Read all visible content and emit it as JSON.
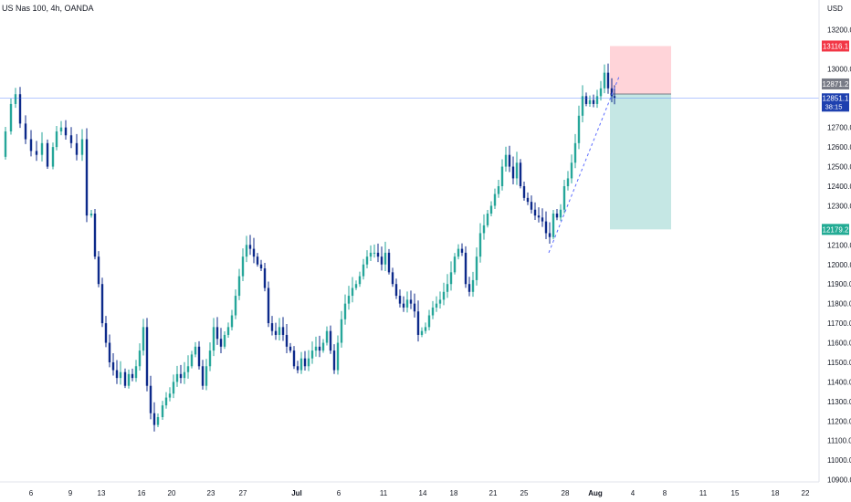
{
  "header": {
    "symbol": "US Nas 100, 4h, OANDA",
    "currency": "USD"
  },
  "colors": {
    "up": "#26a69a",
    "down": "#0d2a8a",
    "stop": "#ffcdd2",
    "target": "#b2dfdb",
    "stop_label": "#f23645",
    "target_label": "#22ab94",
    "last_label": "#1e40af",
    "mid_label": "#787b86"
  },
  "chart_data": {
    "type": "candlestick",
    "y_ticks": [
      "13200.0",
      "13000.0",
      "12700.0",
      "12600.0",
      "12500.0",
      "12400.0",
      "12300.0",
      "12100.0",
      "12000.0",
      "11900.0",
      "11800.0",
      "11700.0",
      "11600.0",
      "11500.0",
      "11400.0",
      "11300.0",
      "11200.0",
      "11100.0",
      "11000.0",
      "10900.0"
    ],
    "ylim": [
      10880,
      13300
    ],
    "x_ticks": [
      "6",
      "9",
      "13",
      "16",
      "20",
      "23",
      "27",
      "Jul",
      "6",
      "11",
      "14",
      "18",
      "21",
      "25",
      "28",
      "Aug",
      "4",
      "8",
      "11",
      "15",
      "18",
      "22"
    ],
    "series_path": [
      [
        0,
        12550
      ],
      [
        6,
        12680
      ],
      [
        12,
        12820
      ],
      [
        17,
        12870
      ],
      [
        22,
        12720
      ],
      [
        28,
        12640
      ],
      [
        34,
        12580
      ],
      [
        40,
        12560
      ],
      [
        46,
        12620
      ],
      [
        52,
        12500
      ],
      [
        58,
        12600
      ],
      [
        62,
        12680
      ],
      [
        67,
        12700
      ],
      [
        72,
        12660
      ],
      [
        78,
        12620
      ],
      [
        84,
        12560
      ],
      [
        90,
        12640
      ],
      [
        95,
        12250
      ],
      [
        100,
        12260
      ],
      [
        104,
        12040
      ],
      [
        108,
        11900
      ],
      [
        112,
        11700
      ],
      [
        116,
        11600
      ],
      [
        120,
        11500
      ],
      [
        124,
        11460
      ],
      [
        128,
        11420
      ],
      [
        132,
        11450
      ],
      [
        137,
        11380
      ],
      [
        141,
        11440
      ],
      [
        145,
        11420
      ],
      [
        149,
        11480
      ],
      [
        153,
        11560
      ],
      [
        157,
        11680
      ],
      [
        161,
        11380
      ],
      [
        165,
        11240
      ],
      [
        169,
        11180
      ],
      [
        173,
        11220
      ],
      [
        178,
        11280
      ],
      [
        182,
        11320
      ],
      [
        186,
        11340
      ],
      [
        190,
        11400
      ],
      [
        194,
        11440
      ],
      [
        198,
        11420
      ],
      [
        202,
        11450
      ],
      [
        206,
        11480
      ],
      [
        210,
        11540
      ],
      [
        214,
        11580
      ],
      [
        218,
        11480
      ],
      [
        222,
        11380
      ],
      [
        226,
        11480
      ],
      [
        230,
        11560
      ],
      [
        234,
        11680
      ],
      [
        238,
        11620
      ],
      [
        242,
        11580
      ],
      [
        246,
        11640
      ],
      [
        250,
        11680
      ],
      [
        254,
        11740
      ],
      [
        258,
        11840
      ],
      [
        262,
        11940
      ],
      [
        266,
        12040
      ],
      [
        270,
        12100
      ],
      [
        274,
        12080
      ],
      [
        278,
        12040
      ],
      [
        282,
        12000
      ],
      [
        286,
        11980
      ],
      [
        290,
        11880
      ],
      [
        294,
        11700
      ],
      [
        298,
        11660
      ],
      [
        302,
        11640
      ],
      [
        306,
        11680
      ],
      [
        310,
        11640
      ],
      [
        314,
        11580
      ],
      [
        318,
        11560
      ],
      [
        322,
        11480
      ],
      [
        326,
        11460
      ],
      [
        330,
        11520
      ],
      [
        334,
        11480
      ],
      [
        338,
        11520
      ],
      [
        342,
        11560
      ],
      [
        346,
        11580
      ],
      [
        350,
        11560
      ],
      [
        354,
        11600
      ],
      [
        358,
        11660
      ],
      [
        362,
        11560
      ],
      [
        366,
        11460
      ],
      [
        370,
        11600
      ],
      [
        374,
        11720
      ],
      [
        378,
        11800
      ],
      [
        382,
        11840
      ],
      [
        386,
        11880
      ],
      [
        390,
        11900
      ],
      [
        394,
        11940
      ],
      [
        398,
        12000
      ],
      [
        402,
        12040
      ],
      [
        406,
        12060
      ],
      [
        410,
        12060
      ],
      [
        414,
        12040
      ],
      [
        418,
        12000
      ],
      [
        422,
        12060
      ],
      [
        426,
        11960
      ],
      [
        430,
        11900
      ],
      [
        434,
        11840
      ],
      [
        438,
        11800
      ],
      [
        442,
        11780
      ],
      [
        446,
        11820
      ],
      [
        450,
        11800
      ],
      [
        454,
        11760
      ],
      [
        458,
        11640
      ],
      [
        462,
        11660
      ],
      [
        466,
        11680
      ],
      [
        470,
        11740
      ],
      [
        474,
        11780
      ],
      [
        478,
        11800
      ],
      [
        482,
        11820
      ],
      [
        486,
        11860
      ],
      [
        490,
        11900
      ],
      [
        494,
        11960
      ],
      [
        498,
        12040
      ],
      [
        502,
        12080
      ],
      [
        506,
        12060
      ],
      [
        510,
        11900
      ],
      [
        514,
        11860
      ],
      [
        518,
        11920
      ],
      [
        522,
        12040
      ],
      [
        526,
        12160
      ],
      [
        530,
        12200
      ],
      [
        534,
        12260
      ],
      [
        538,
        12300
      ],
      [
        542,
        12360
      ],
      [
        546,
        12400
      ],
      [
        550,
        12500
      ],
      [
        554,
        12560
      ],
      [
        558,
        12500
      ],
      [
        562,
        12440
      ],
      [
        566,
        12520
      ],
      [
        570,
        12400
      ],
      [
        574,
        12340
      ],
      [
        578,
        12320
      ],
      [
        582,
        12280
      ],
      [
        586,
        12250
      ],
      [
        590,
        12240
      ],
      [
        594,
        12220
      ],
      [
        598,
        12160
      ],
      [
        602,
        12140
      ],
      [
        606,
        12260
      ],
      [
        610,
        12240
      ],
      [
        614,
        12280
      ],
      [
        618,
        12400
      ],
      [
        622,
        12440
      ],
      [
        626,
        12520
      ],
      [
        630,
        12620
      ],
      [
        634,
        12760
      ],
      [
        638,
        12860
      ],
      [
        642,
        12820
      ],
      [
        646,
        12840
      ],
      [
        650,
        12820
      ],
      [
        654,
        12860
      ],
      [
        658,
        12900
      ],
      [
        662,
        12980
      ],
      [
        666,
        12900
      ],
      [
        670,
        12860
      ],
      [
        673,
        12852
      ]
    ],
    "trendline": {
      "from": [
        601,
        12060
      ],
      "to": [
        678,
        12960
      ]
    },
    "position": {
      "entry": "12871.2",
      "stop": "13116.1",
      "target": "12179.2",
      "x_range": [
        668,
        735
      ]
    },
    "labels": {
      "stop": "13116.1",
      "mid": "12871.2",
      "last_price": "12851.1",
      "countdown": "38:15"
    }
  }
}
